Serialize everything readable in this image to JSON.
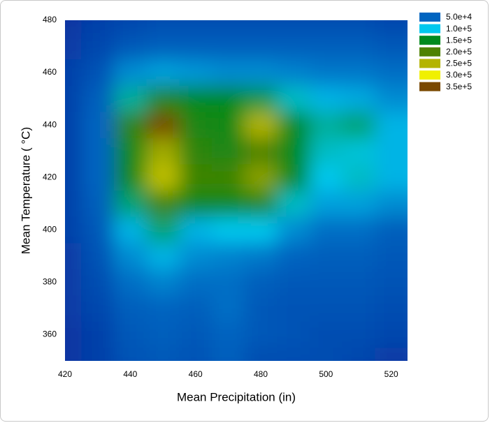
{
  "chart_data": {
    "type": "contour",
    "x_label": "Mean Precipitation (in)",
    "y_label": "Mean Temperature ( °C)",
    "xlim": [
      420,
      525
    ],
    "ylim": [
      350,
      480
    ],
    "xticks": [
      420,
      440,
      460,
      480,
      500,
      520
    ],
    "yticks": [
      360,
      380,
      400,
      420,
      440,
      460,
      480
    ],
    "x": [
      420,
      430,
      440,
      450,
      460,
      470,
      480,
      490,
      500,
      510,
      520
    ],
    "y": [
      480,
      470,
      460,
      450,
      440,
      430,
      420,
      410,
      400,
      390,
      380,
      370,
      360,
      350
    ],
    "z": [
      [
        10000,
        20000,
        25000,
        30000,
        30000,
        30000,
        30000,
        30000,
        30000,
        30000,
        25000
      ],
      [
        15000,
        25000,
        40000,
        45000,
        45000,
        45000,
        45000,
        45000,
        45000,
        45000,
        40000
      ],
      [
        20000,
        35000,
        70000,
        80000,
        75000,
        70000,
        70000,
        65000,
        60000,
        60000,
        55000
      ],
      [
        20000,
        45000,
        120000,
        170000,
        150000,
        150000,
        140000,
        110000,
        90000,
        85000,
        70000
      ],
      [
        20000,
        50000,
        180000,
        350000,
        170000,
        160000,
        250000,
        150000,
        120000,
        130000,
        90000
      ],
      [
        20000,
        50000,
        160000,
        240000,
        180000,
        170000,
        200000,
        150000,
        110000,
        105000,
        90000
      ],
      [
        20000,
        50000,
        160000,
        260000,
        190000,
        190000,
        230000,
        150000,
        100000,
        110000,
        90000
      ],
      [
        20000,
        45000,
        130000,
        190000,
        160000,
        160000,
        170000,
        110000,
        80000,
        80000,
        70000
      ],
      [
        20000,
        40000,
        90000,
        130000,
        90000,
        100000,
        100000,
        70000,
        55000,
        55000,
        45000
      ],
      [
        15000,
        35000,
        70000,
        90000,
        70000,
        65000,
        60000,
        50000,
        45000,
        45000,
        40000
      ],
      [
        15000,
        30000,
        55000,
        65000,
        55000,
        55000,
        45000,
        40000,
        40000,
        40000,
        35000
      ],
      [
        15000,
        25000,
        45000,
        50000,
        45000,
        55000,
        40000,
        35000,
        35000,
        35000,
        30000
      ],
      [
        10000,
        20000,
        40000,
        45000,
        40000,
        50000,
        40000,
        35000,
        30000,
        30000,
        25000
      ],
      [
        10000,
        20000,
        35000,
        40000,
        35000,
        45000,
        30000,
        30000,
        30000,
        25000,
        15000
      ]
    ],
    "levels": [
      {
        "value": 50000,
        "label": "5.0e+4"
      },
      {
        "value": 100000,
        "label": "1.0e+5"
      },
      {
        "value": 150000,
        "label": "1.5e+5"
      },
      {
        "value": 200000,
        "label": "2.0e+5"
      },
      {
        "value": 250000,
        "label": "2.5e+5"
      },
      {
        "value": 300000,
        "label": "3.0e+5"
      },
      {
        "value": 350000,
        "label": "3.5e+5"
      }
    ],
    "level_colors": [
      "#0064c0",
      "#00c8ee",
      "#008a1e",
      "#4e8200",
      "#b4b400",
      "#f0f000",
      "#7a4800"
    ],
    "floor_color": "#0a2a9a",
    "legend_position": "upper right"
  }
}
